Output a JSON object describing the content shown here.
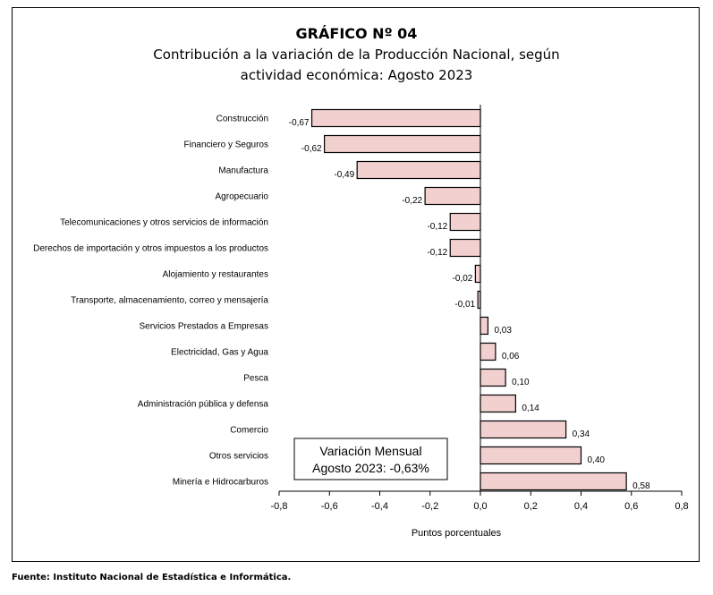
{
  "chart_data": {
    "type": "bar",
    "orientation": "horizontal",
    "title": "GRÁFICO Nº 04",
    "subtitle_lines": [
      "Contribución a la variación de la Producción Nacional, según",
      "actividad económica: Agosto 2023"
    ],
    "categories": [
      "Construcción",
      "Financiero y Seguros",
      "Manufactura",
      "Agropecuario",
      "Telecomunicaciones y otros servicios de información",
      "Derechos de importación y otros impuestos a los productos",
      "Alojamiento y restaurantes",
      "Transporte, almacenamiento, correo y mensajería",
      "Servicios Prestados a Empresas",
      "Electricidad, Gas y Agua",
      "Pesca",
      "Administración pública y defensa",
      "Comercio",
      "Otros servicios",
      "Minería e Hidrocarburos"
    ],
    "values": [
      -0.67,
      -0.62,
      -0.49,
      -0.22,
      -0.12,
      -0.12,
      -0.02,
      -0.01,
      0.03,
      0.06,
      0.1,
      0.14,
      0.34,
      0.4,
      0.58
    ],
    "value_labels": [
      "-0,67",
      "-0,62",
      "-0,49",
      "-0,22",
      "-0,12",
      "-0,12",
      "-0,02",
      "-0,01",
      "0,03",
      "0,06",
      "0,10",
      "0,14",
      "0,34",
      "0,40",
      "0,58"
    ],
    "xlim": [
      -0.8,
      0.8
    ],
    "xticks": [
      -0.8,
      -0.6,
      -0.4,
      -0.2,
      0.0,
      0.2,
      0.4,
      0.6,
      0.8
    ],
    "xtick_labels": [
      "-0,8",
      "-0,6",
      "-0,4",
      "-0,2",
      "0,0",
      "0,2",
      "0,4",
      "0,6",
      "0,8"
    ],
    "xlabel": "Puntos porcentuales",
    "ylabel": "",
    "grid": false,
    "bar_color": "#f2d0d0",
    "bar_edge_color": "#000000",
    "annotation": {
      "lines": [
        "Variación Mensual",
        "Agosto 2023: -0,63%"
      ]
    }
  },
  "footer": {
    "text": "Fuente:  Instituto Nacional de Estadística e Informática."
  }
}
